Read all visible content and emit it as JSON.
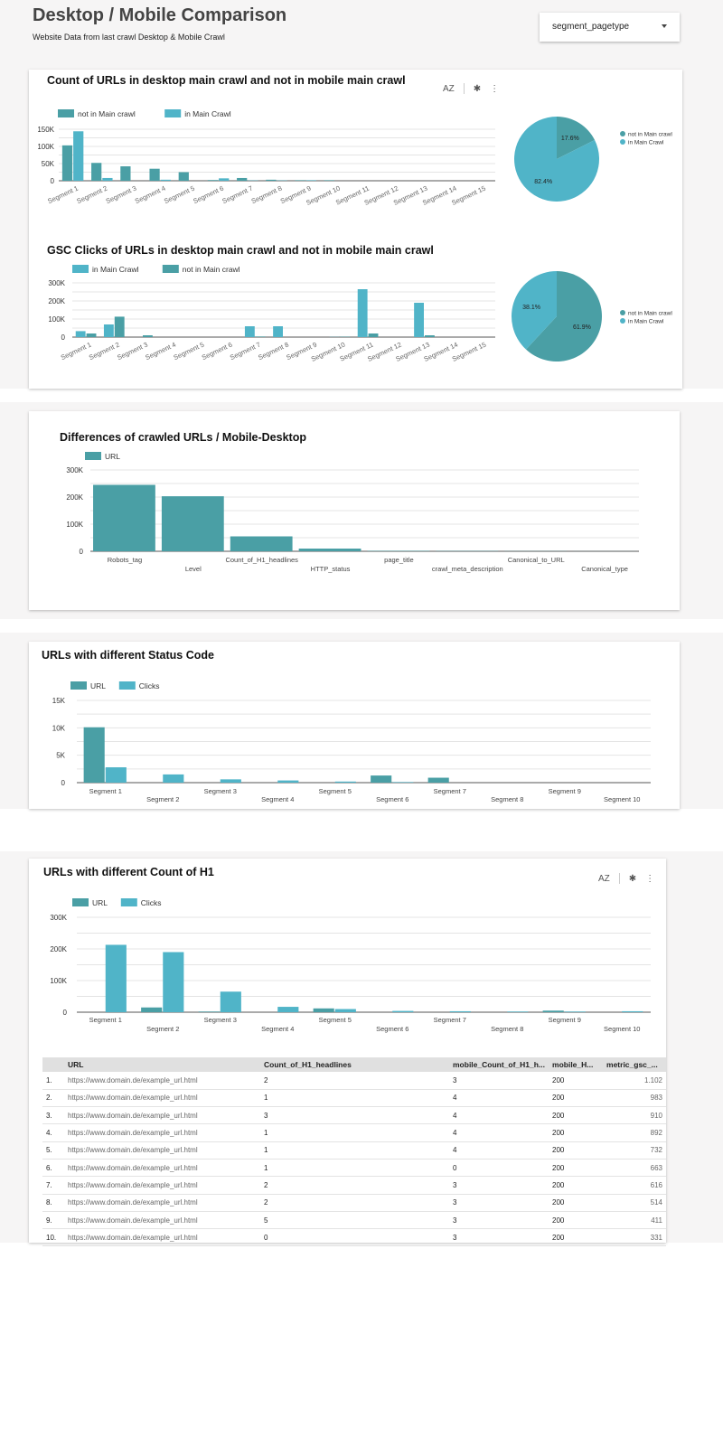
{
  "header": {
    "title": "Desktop / Mobile Comparison",
    "subtitle": "Website Data from last crawl Desktop & Mobile Crawl",
    "dropdown_value": "segment_pagetype"
  },
  "colors": {
    "dark": "#4a9fa5",
    "light": "#50b4c8"
  },
  "toolbar": {
    "sort_icon": "sort-az-icon",
    "filter_icon": "filter-off-icon",
    "more_icon": "more-vert-icon",
    "sort_label": "AZ",
    "filter_label": "✱",
    "more_label": "⋮"
  },
  "chart_data": [
    {
      "type": "bar",
      "title": "Count of URLs in desktop main crawl and not in mobile main crawl",
      "categories": [
        "Segment 1",
        "Segment 2",
        "Segment 3",
        "Segment 4",
        "Segment 5",
        "Segment 6",
        "Segment 7",
        "Segment 8",
        "Segment 9",
        "Segment 10",
        "Segment 11",
        "Segment 12",
        "Segment 13",
        "Segment 14",
        "Segment 15"
      ],
      "series": [
        {
          "name": "not in Main crawl",
          "color": "#4a9fa5",
          "values": [
            103000,
            52000,
            42000,
            35000,
            25000,
            2000,
            8000,
            3000,
            1500,
            1500,
            0,
            0,
            0,
            0,
            0
          ]
        },
        {
          "name": "in Main Crawl",
          "color": "#50b4c8",
          "values": [
            144000,
            8000,
            0,
            3000,
            0,
            7000,
            1000,
            1000,
            1500,
            0,
            0,
            0,
            0,
            0,
            0
          ]
        }
      ],
      "yticks": [
        "0",
        "50K",
        "100K",
        "150K"
      ],
      "ylim": [
        0,
        150000
      ],
      "grid": true,
      "legend": "top-left",
      "xlabel_rotation": -25
    },
    {
      "type": "pie",
      "categories": [
        "not in Main crawl",
        "in Main Crawl"
      ],
      "values": [
        17.6,
        82.4
      ],
      "labels": [
        "17.6%",
        "82.4%"
      ],
      "legend": "right"
    },
    {
      "type": "bar",
      "title": "GSC Clicks of URLs in desktop main crawl and not in mobile main crawl",
      "categories": [
        "Segment 1",
        "Segment 2",
        "Segment 3",
        "Segment 4",
        "Segment 5",
        "Segment 6",
        "Segment 7",
        "Segment 8",
        "Segment 9",
        "Segment 10",
        "Segment 11",
        "Segment 12",
        "Segment 13",
        "Segment 14",
        "Segment 15"
      ],
      "series": [
        {
          "name": "in Main Crawl",
          "color": "#50b4c8",
          "values": [
            33000,
            70000,
            0,
            0,
            0,
            0,
            60000,
            60000,
            0,
            1000,
            265000,
            0,
            190000,
            0,
            0
          ]
        },
        {
          "name": "not in Main crawl",
          "color": "#4a9fa5",
          "values": [
            20000,
            113000,
            10000,
            0,
            0,
            0,
            3000,
            0,
            0,
            2000,
            20000,
            0,
            10000,
            0,
            0
          ]
        }
      ],
      "yticks": [
        "0",
        "100K",
        "200K",
        "300K"
      ],
      "ylim": [
        0,
        300000
      ],
      "grid": true,
      "legend": "top-left",
      "xlabel_rotation": -25
    },
    {
      "type": "pie",
      "categories": [
        "not in Main crawl",
        "in Main Crawl"
      ],
      "values": [
        61.9,
        38.1
      ],
      "labels": [
        "61.9%",
        "38.1%"
      ],
      "legend": "right"
    },
    {
      "type": "bar",
      "title": "Differences of crawled URLs / Mobile-Desktop",
      "categories": [
        "Robots_tag",
        "Level",
        "Count_of_H1_headlines",
        "HTTP_status",
        "page_title",
        "crawl_meta_description",
        "Canonical_to_URL",
        "Canonical_type"
      ],
      "series": [
        {
          "name": "URL",
          "color": "#4a9fa5",
          "values": [
            245000,
            203000,
            55000,
            10000,
            1500,
            1000,
            500,
            200
          ]
        }
      ],
      "yticks": [
        "0",
        "100K",
        "200K",
        "300K"
      ],
      "ylim": [
        0,
        300000
      ],
      "grid": true,
      "legend": "top-left"
    },
    {
      "type": "bar",
      "title": "URLs with different Status Code",
      "categories": [
        "Segment 1",
        "Segment 2",
        "Segment 3",
        "Segment 4",
        "Segment 5",
        "Segment 6",
        "Segment 7",
        "Segment 8",
        "Segment 9",
        "Segment 10"
      ],
      "series": [
        {
          "name": "URL",
          "color": "#4a9fa5",
          "values": [
            10100,
            0,
            0,
            0,
            0,
            1300,
            900,
            0,
            0,
            0
          ]
        },
        {
          "name": "Clicks",
          "color": "#50b4c8",
          "values": [
            2800,
            1500,
            600,
            400,
            200,
            100,
            0,
            0,
            0,
            0
          ]
        }
      ],
      "yticks": [
        "0",
        "5K",
        "10K",
        "15K"
      ],
      "ylim": [
        0,
        15000
      ],
      "grid": true,
      "legend": "top-left"
    },
    {
      "type": "bar",
      "title": "URLs with different Count of H1",
      "categories": [
        "Segment 1",
        "Segment 2",
        "Segment 3",
        "Segment 4",
        "Segment 5",
        "Segment 6",
        "Segment 7",
        "Segment 8",
        "Segment 9",
        "Segment 10"
      ],
      "series": [
        {
          "name": "URL",
          "color": "#4a9fa5",
          "values": [
            0,
            15000,
            2000,
            0,
            12000,
            0,
            0,
            0,
            5000,
            0
          ]
        },
        {
          "name": "Clicks",
          "color": "#50b4c8",
          "values": [
            213000,
            190000,
            65000,
            17000,
            10000,
            4000,
            3000,
            2000,
            2000,
            3000
          ]
        }
      ],
      "yticks": [
        "0",
        "100K",
        "200K",
        "300K"
      ],
      "ylim": [
        0,
        300000
      ],
      "grid": true,
      "legend": "top-left"
    }
  ],
  "table": {
    "columns": [
      "URL",
      "Count_of_H1_headlines",
      "mobile_Count_of_H1_h...",
      "mobile_H...",
      "metric_gsc_..."
    ],
    "rows": [
      [
        "1.",
        "https://www.domain.de/example_url.html",
        "2",
        "3",
        "200",
        "1.102"
      ],
      [
        "2.",
        "https://www.domain.de/example_url.html",
        "1",
        "4",
        "200",
        "983"
      ],
      [
        "3.",
        "https://www.domain.de/example_url.html",
        "3",
        "4",
        "200",
        "910"
      ],
      [
        "4.",
        "https://www.domain.de/example_url.html",
        "1",
        "4",
        "200",
        "892"
      ],
      [
        "5.",
        "https://www.domain.de/example_url.html",
        "1",
        "4",
        "200",
        "732"
      ],
      [
        "6.",
        "https://www.domain.de/example_url.html",
        "1",
        "0",
        "200",
        "663"
      ],
      [
        "7.",
        "https://www.domain.de/example_url.html",
        "2",
        "3",
        "200",
        "616"
      ],
      [
        "8.",
        "https://www.domain.de/example_url.html",
        "2",
        "3",
        "200",
        "514"
      ],
      [
        "9.",
        "https://www.domain.de/example_url.html",
        "5",
        "3",
        "200",
        "411"
      ],
      [
        "10.",
        "https://www.domain.de/example_url.html",
        "0",
        "3",
        "200",
        "331"
      ]
    ]
  }
}
